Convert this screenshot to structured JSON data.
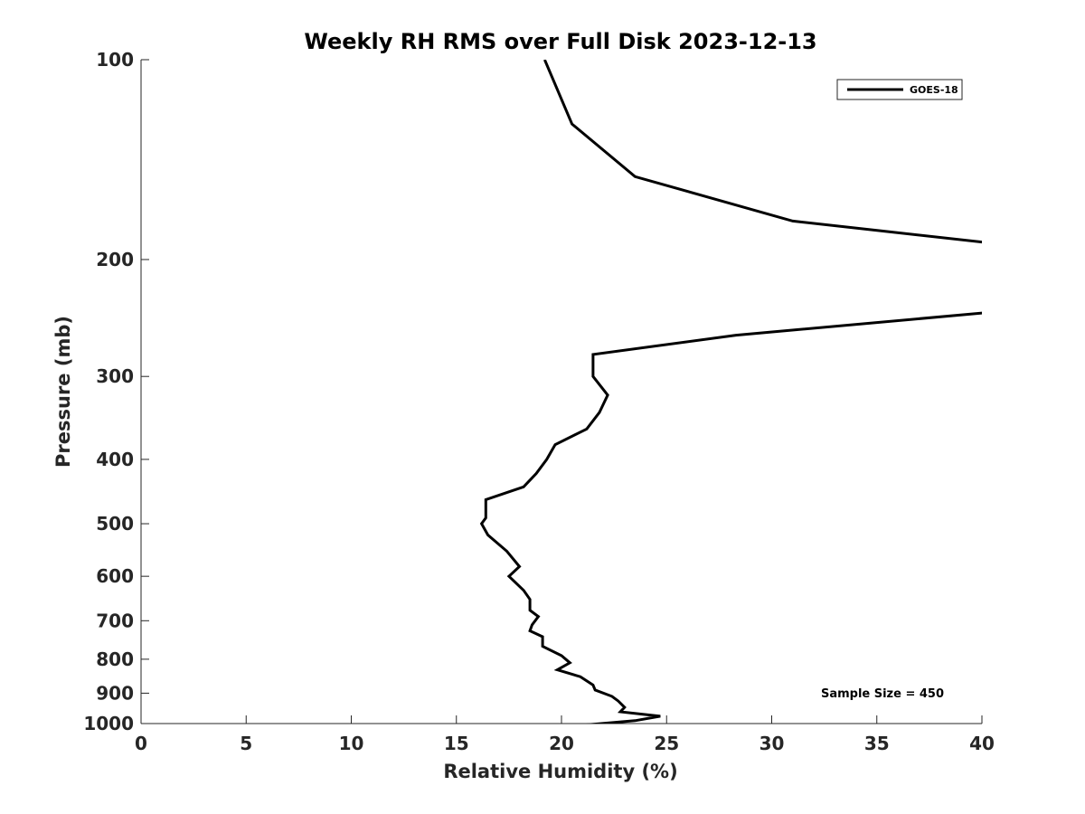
{
  "chart_data": {
    "type": "line",
    "title": "Weekly RH RMS over Full Disk 2023-12-13",
    "xlabel": "Relative Humidity (%)",
    "ylabel": "Pressure (mb)",
    "xlim": [
      0,
      40
    ],
    "ylim": [
      100,
      1000
    ],
    "y_scale": "log",
    "y_reversed": true,
    "grid": false,
    "x_ticks": [
      0,
      5,
      10,
      15,
      20,
      25,
      30,
      35,
      40
    ],
    "y_ticks": [
      100,
      200,
      300,
      400,
      500,
      600,
      700,
      800,
      900,
      1000
    ],
    "legend_position": "top-right",
    "annotation": "Sample Size = 450",
    "series": [
      {
        "name": "GOES-18",
        "color": "#000000",
        "segments": [
          {
            "x": [
              19.2,
              20.5,
              23.5,
              31.0,
              40.5
            ],
            "y": [
              100,
              125,
              150,
              175,
              189
            ]
          },
          {
            "x": [
              40.5,
              28.3,
              21.5,
              21.5,
              21.5,
              22.2,
              21.8,
              21.2,
              19.7,
              19.3,
              18.8,
              18.2,
              16.4,
              16.4,
              16.4,
              16.2,
              16.5,
              17.4,
              18.0,
              17.5,
              18.2,
              18.5,
              18.5,
              18.9,
              18.6,
              18.5,
              19.1,
              19.1,
              20.0,
              20.4,
              19.8,
              20.9,
              21.5,
              21.6,
              22.4,
              22.7,
              23.0,
              22.8,
              24.7,
              23.5,
              20.3
            ],
            "y": [
              240,
              260,
              278,
              295,
              300,
              320,
              340,
              360,
              380,
              400,
              420,
              440,
              460,
              480,
              490,
              500,
              520,
              550,
              580,
              600,
              630,
              650,
              675,
              690,
              710,
              725,
              740,
              765,
              790,
              810,
              830,
              850,
              875,
              890,
              910,
              925,
              945,
              960,
              975,
              990,
              1010
            ]
          }
        ]
      }
    ],
    "legend_entries": [
      "GOES-18"
    ],
    "sample_size_text": "Sample Size = 450"
  }
}
